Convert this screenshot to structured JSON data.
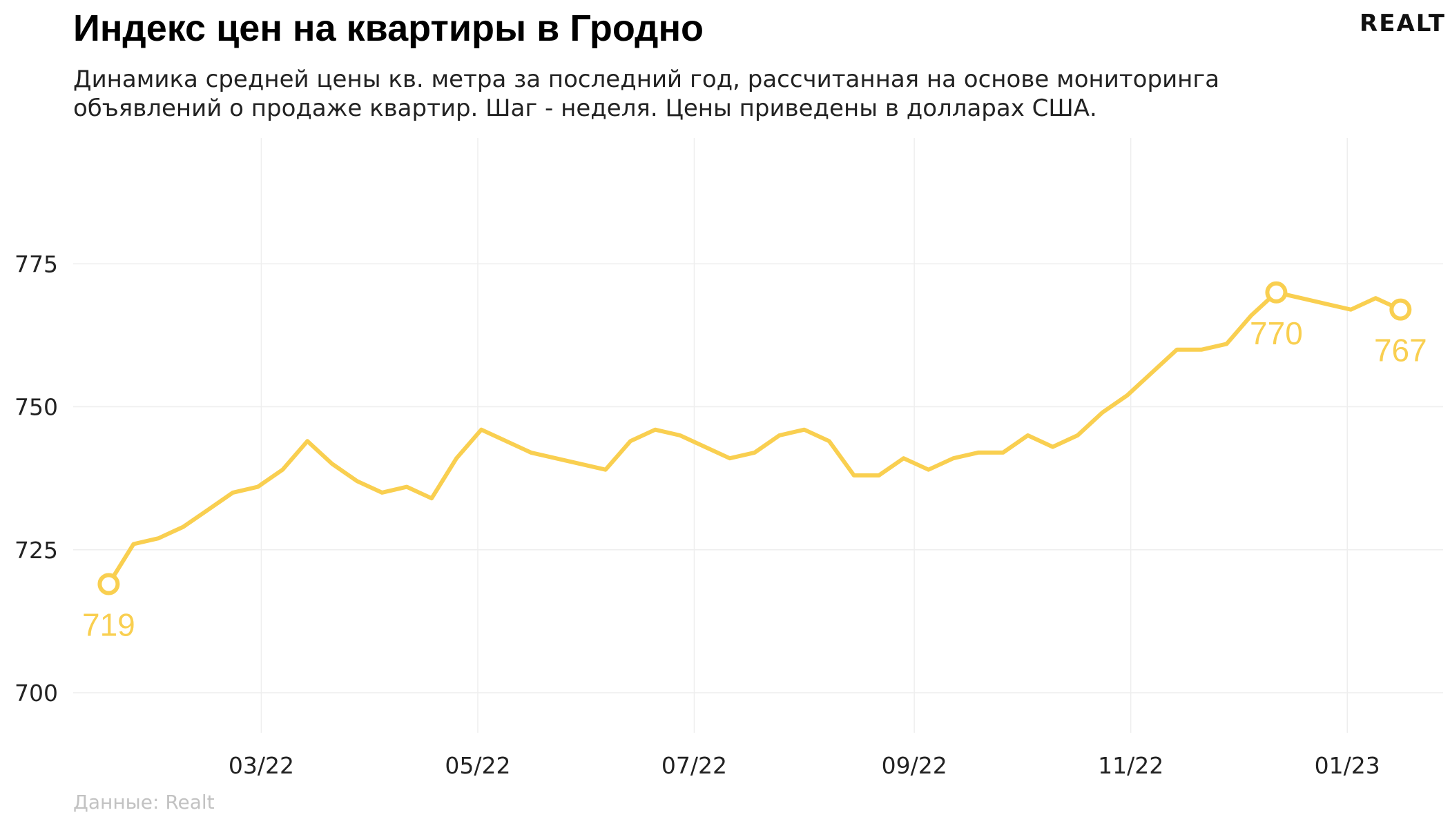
{
  "header": {
    "title": "Индекс цен на квартиры в Гродно",
    "subtitle": "Динамика средней цены кв. метра за последний год, рассчитанная на основе мониторинга объявлений о продаже квартир. Шаг - неделя. Цены приведены в долларах США.",
    "logo_text": "REALT"
  },
  "footer": {
    "source": "Данные: Realt"
  },
  "colors": {
    "line": "#f9cf50",
    "grid": "#eeeeee",
    "background": "#ffffff"
  },
  "chart_data": {
    "type": "line",
    "title": "Индекс цен на квартиры в Гродно",
    "xlabel": "",
    "ylabel": "",
    "x_start": "2022-01-17",
    "x_step_days": 7,
    "x_ticks": [
      {
        "date": "2022-03-01",
        "label": "03/22"
      },
      {
        "date": "2022-05-01",
        "label": "05/22"
      },
      {
        "date": "2022-07-01",
        "label": "07/22"
      },
      {
        "date": "2022-09-01",
        "label": "09/22"
      },
      {
        "date": "2022-11-01",
        "label": "11/22"
      },
      {
        "date": "2023-01-01",
        "label": "01/23"
      }
    ],
    "y_ticks": [
      700,
      725,
      750,
      775
    ],
    "ylim": [
      693,
      797
    ],
    "xlim": [
      "2022-01-07",
      "2023-01-28"
    ],
    "grid": true,
    "series": [
      {
        "values": [
          719,
          726,
          727,
          729,
          732,
          735,
          736,
          739,
          744,
          740,
          737,
          735,
          736,
          734,
          741,
          746,
          744,
          742,
          741,
          740,
          739,
          744,
          746,
          745,
          743,
          741,
          742,
          745,
          746,
          744,
          738,
          738,
          741,
          739,
          741,
          742,
          742,
          745,
          743,
          745,
          749,
          752,
          756,
          760,
          760,
          761,
          766,
          770,
          769,
          768,
          767,
          769,
          767
        ]
      }
    ],
    "annotations": [
      {
        "index": 0,
        "label": "719"
      },
      {
        "index": 47,
        "label": "770"
      },
      {
        "index": 52,
        "label": "767"
      }
    ]
  }
}
